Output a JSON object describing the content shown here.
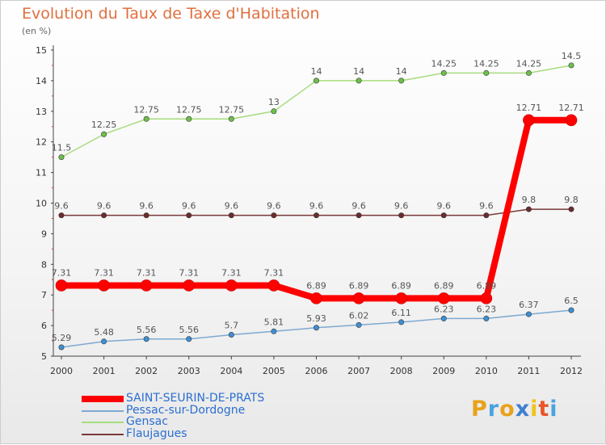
{
  "title": "Evolution du Taux de Taxe d'Habitation",
  "unit": "(en %)",
  "logo": {
    "letters": [
      "P",
      "r",
      "o",
      "x",
      "i",
      "t",
      "i"
    ],
    "colors": [
      "#e8a21b",
      "#4aa3df",
      "#e8a21b",
      "#3f7fd0",
      "#f0c419",
      "#e8562a",
      "#4aa3df"
    ]
  },
  "chart_data": {
    "type": "line",
    "title": "Evolution du Taux de Taxe d'Habitation",
    "ylabel": "(en %)",
    "x": [
      "2000",
      "2001",
      "2002",
      "2003",
      "2004",
      "2005",
      "2006",
      "2007",
      "2008",
      "2009",
      "2010",
      "2011",
      "2012"
    ],
    "ylim": [
      5,
      15
    ],
    "yticks": [
      5,
      6,
      7,
      8,
      9,
      10,
      11,
      12,
      13,
      14,
      15
    ],
    "grid": false,
    "legend_position": "bottom-left",
    "series": [
      {
        "name": "SAINT-SEURIN-DE-PRATS",
        "color": "#ff0000",
        "point_color": "#ff0000",
        "width": 8,
        "values": [
          7.31,
          7.31,
          7.31,
          7.31,
          7.31,
          7.31,
          6.89,
          6.89,
          6.89,
          6.89,
          6.89,
          12.71,
          12.71
        ],
        "labels": [
          "7.31",
          "7.31",
          "7.31",
          "7.31",
          "7.31",
          "7.31",
          "6.89",
          "6.89",
          "6.89",
          "6.89",
          "6.89",
          "12.71",
          "12.71"
        ]
      },
      {
        "name": "Pessac-sur-Dordogne",
        "color": "#7ea9d1",
        "point_color": "#3e8fd3",
        "width": 1.5,
        "values": [
          5.29,
          5.48,
          5.56,
          5.56,
          5.7,
          5.81,
          5.93,
          6.02,
          6.11,
          6.23,
          6.23,
          6.37,
          6.5
        ],
        "labels": [
          "5.29",
          "5.48",
          "5.56",
          "5.56",
          "5.7",
          "5.81",
          "5.93",
          "6.02",
          "6.11",
          "6.23",
          "6.23",
          "6.37",
          "6.5"
        ]
      },
      {
        "name": "Gensac",
        "color": "#a6dc7e",
        "point_color": "#6cc04a",
        "width": 1.5,
        "values": [
          11.5,
          12.25,
          12.75,
          12.75,
          12.75,
          13,
          14,
          14,
          14,
          14.25,
          14.25,
          14.25,
          14.5
        ],
        "labels": [
          "11.5",
          "12.25",
          "12.75",
          "12.75",
          "12.75",
          "13",
          "14",
          "14",
          "14",
          "14.25",
          "14.25",
          "14.25",
          "14.5"
        ]
      },
      {
        "name": "Flaujagues",
        "color": "#7a3a3a",
        "point_color": "#6e2b2b",
        "width": 1.5,
        "values": [
          9.6,
          9.6,
          9.6,
          9.6,
          9.6,
          9.6,
          9.6,
          9.6,
          9.6,
          9.6,
          9.6,
          9.8,
          9.8
        ],
        "labels": [
          "9.6",
          "9.6",
          "9.6",
          "9.6",
          "9.6",
          "9.6",
          "9.6",
          "9.6",
          "9.6",
          "9.6",
          "9.6",
          "9.8",
          "9.8"
        ]
      }
    ]
  }
}
